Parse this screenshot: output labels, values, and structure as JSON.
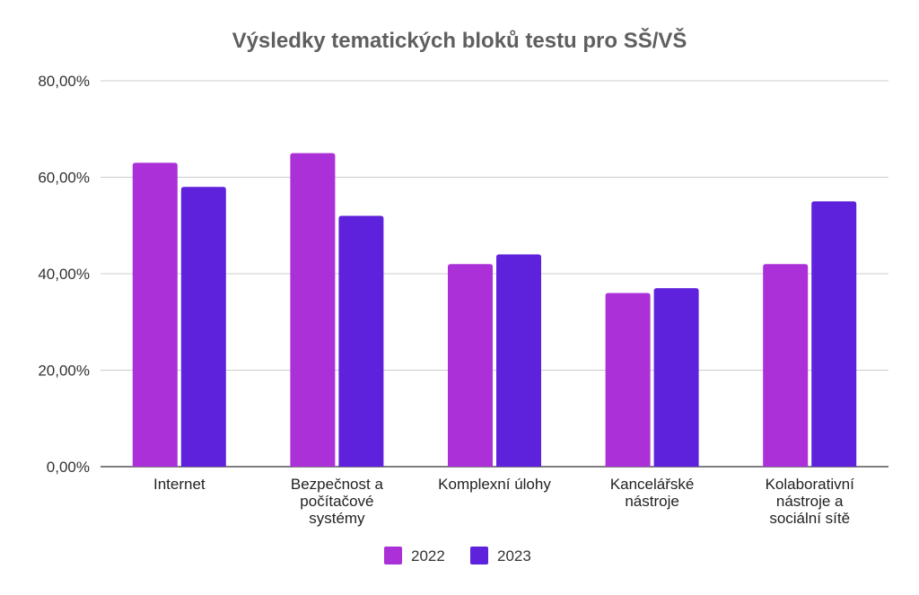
{
  "chart_data": {
    "type": "bar",
    "title": "Výsledky tematických bloků testu pro SŠ/VŠ",
    "xlabel": "",
    "ylabel": "",
    "ylim": [
      0,
      80
    ],
    "yticks": [
      "0,00%",
      "20,00%",
      "40,00%",
      "60,00%",
      "80,00%"
    ],
    "categories": [
      [
        "Internet"
      ],
      [
        "Bezpečnost a",
        "počítačové",
        "systémy"
      ],
      [
        "Komplexní úlohy"
      ],
      [
        "Kancelářské",
        "nástroje"
      ],
      [
        "Kolaborativní",
        "nástroje a",
        "sociální sítě"
      ]
    ],
    "series": [
      {
        "name": "2022",
        "color": "#ab30d8",
        "values": [
          63,
          65,
          42,
          36,
          42
        ]
      },
      {
        "name": "2023",
        "color": "#5e22dc",
        "values": [
          58,
          52,
          44,
          37,
          55
        ]
      }
    ],
    "grid": true,
    "legend": "bottom"
  }
}
